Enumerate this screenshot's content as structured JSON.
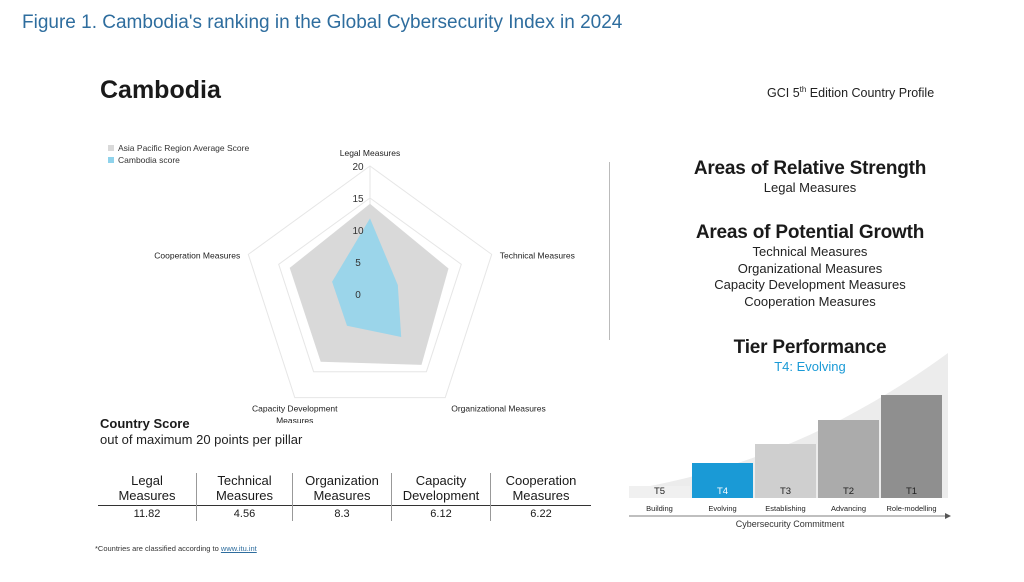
{
  "figure_caption": "Figure 1. Cambodia's ranking in the Global Cybersecurity Index in 2024",
  "header": {
    "country": "Cambodia",
    "edition_prefix": "GCI 5",
    "edition_sup": "th",
    "edition_suffix": " Edition Country Profile"
  },
  "colors": {
    "region": "#d9d9d9",
    "country": "#8fd3ec",
    "accent": "#1a9ad6",
    "caption": "#2e6d9e"
  },
  "chart_data": {
    "type": "radar",
    "axes": [
      "Legal Measures",
      "Technical Measures",
      "Organizational Measures",
      "Capacity Development Measures",
      "Cooperation Measures"
    ],
    "axis_label_lines": [
      [
        "Legal Measures"
      ],
      [
        "Technical Measures"
      ],
      [
        "Organizational Measures"
      ],
      [
        "Capacity Development",
        "Measures"
      ],
      [
        "Cooperation Measures"
      ]
    ],
    "rlim": [
      0,
      20
    ],
    "ticks": [
      0,
      5,
      10,
      15,
      20
    ],
    "series": [
      {
        "name": "Asia Pacific Region Average Score",
        "values": [
          14.1,
          12.9,
          13.7,
          13.1,
          13.2
        ]
      },
      {
        "name": "Cambodia score",
        "values": [
          11.82,
          4.56,
          8.3,
          6.12,
          6.22
        ]
      }
    ],
    "legend_position": "top-left"
  },
  "strengths": {
    "title": "Areas of Relative Strength",
    "items": [
      "Legal Measures"
    ]
  },
  "growth": {
    "title": "Areas of Potential Growth",
    "items": [
      "Technical Measures",
      "Organizational Measures",
      "Capacity Development Measures",
      "Cooperation Measures"
    ]
  },
  "tier": {
    "title": "Tier Performance",
    "current": "T4: Evolving",
    "current_index": 1,
    "tiers": [
      {
        "code": "T5",
        "name": "Building"
      },
      {
        "code": "T4",
        "name": "Evolving"
      },
      {
        "code": "T3",
        "name": "Establishing"
      },
      {
        "code": "T2",
        "name": "Advancing"
      },
      {
        "code": "T1",
        "name": "Role-modelling"
      }
    ],
    "axis_label": "Cybersecurity Commitment"
  },
  "score": {
    "title": "Country Score",
    "subtitle": "out of maximum 20 points per pillar",
    "headers": [
      [
        "Legal",
        "Measures"
      ],
      [
        "Technical",
        "Measures"
      ],
      [
        "Organization",
        "Measures"
      ],
      [
        "Capacity",
        "Development"
      ],
      [
        "Cooperation",
        "Measures"
      ]
    ],
    "values": [
      "11.82",
      "4.56",
      "8.3",
      "6.12",
      "6.22"
    ]
  },
  "footnote": {
    "text": "*Countries are classified according to ",
    "link": "www.itu.int"
  }
}
